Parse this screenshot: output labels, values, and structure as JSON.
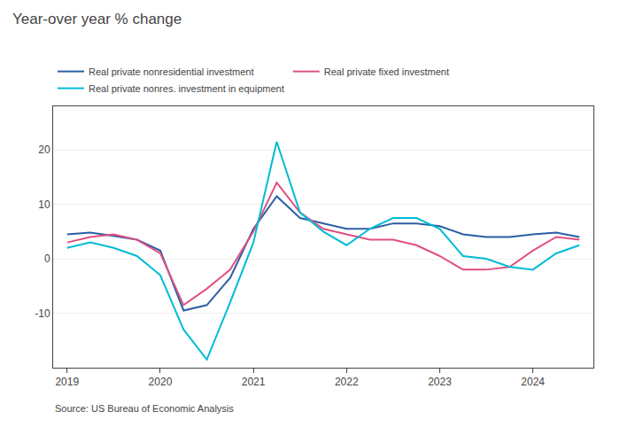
{
  "chart_data": {
    "type": "line",
    "title": "Year-over year % change",
    "annotations": [
      "Source: US Bureau of Economic Analysis"
    ],
    "x": [
      2019.0,
      2019.25,
      2019.5,
      2019.75,
      2020.0,
      2020.25,
      2020.5,
      2020.75,
      2021.0,
      2021.25,
      2021.5,
      2021.75,
      2022.0,
      2022.25,
      2022.5,
      2022.75,
      2023.0,
      2023.25,
      2023.5,
      2023.75,
      2024.0,
      2024.25,
      2024.5
    ],
    "series": [
      {
        "name": "Real private nonresidential investment",
        "color": "#2a5fa5",
        "values": [
          4.5,
          4.8,
          4.2,
          3.5,
          1.5,
          -9.5,
          -8.5,
          -3.5,
          5.5,
          11.5,
          7.5,
          6.5,
          5.5,
          5.5,
          6.5,
          6.5,
          6.0,
          4.5,
          4.0,
          4.0,
          4.5,
          4.8,
          4.0
        ]
      },
      {
        "name": "Real private fixed investment",
        "color": "#e05080",
        "values": [
          3.0,
          4.0,
          4.5,
          3.5,
          1.0,
          -8.5,
          -5.5,
          -2.0,
          5.0,
          14.0,
          8.5,
          5.5,
          4.5,
          3.5,
          3.5,
          2.5,
          0.5,
          -2.0,
          -2.0,
          -1.5,
          1.5,
          4.0,
          3.5
        ]
      },
      {
        "name": "Real private nonres. investment in equipment",
        "color": "#00bcd4",
        "values": [
          2.0,
          3.0,
          2.0,
          0.5,
          -3.0,
          -13.0,
          -18.5,
          -8.0,
          3.0,
          21.5,
          8.5,
          5.0,
          2.5,
          5.5,
          7.5,
          7.5,
          5.5,
          0.5,
          0.0,
          -1.5,
          -2.0,
          1.0,
          2.5
        ]
      }
    ],
    "xlim": [
      2018.85,
      2024.65
    ],
    "xticks": [
      2019,
      2020,
      2021,
      2022,
      2023,
      2024
    ],
    "ylim": [
      -20,
      28
    ],
    "yticks": [
      -10,
      0,
      10,
      20
    ],
    "grid": "y",
    "legend": "top left"
  }
}
